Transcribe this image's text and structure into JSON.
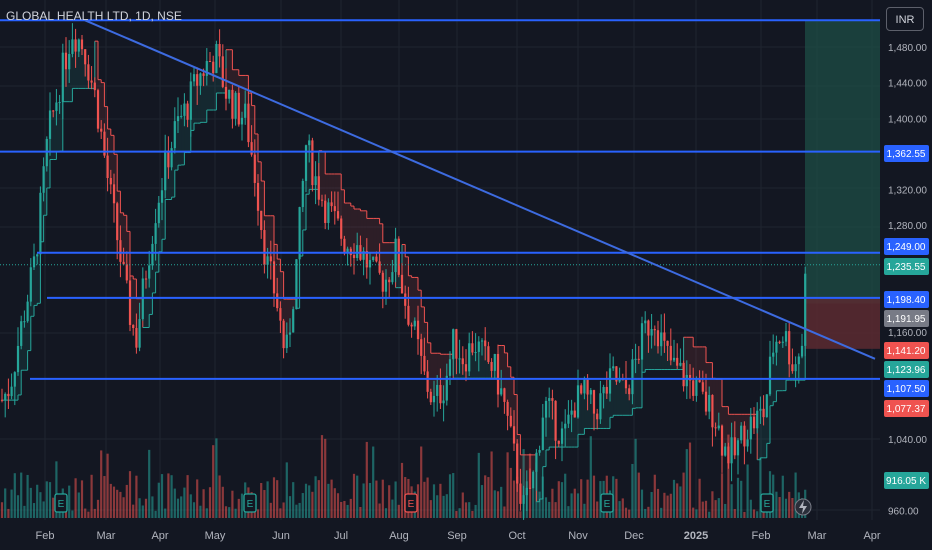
{
  "header": {
    "symbol_title": "GLOBAL HEALTH LTD, 1D, NSE",
    "currency_button": "INR"
  },
  "colors": {
    "background": "#131722",
    "up": "#26a69a",
    "down": "#ef5350",
    "level_line": "#2962ff",
    "trend_line": "#3d6be0",
    "profit_zone": "#1e4d45",
    "loss_zone": "#5c2a30"
  },
  "chart_data": {
    "type": "candlestick",
    "y_ticks": [
      "1,480.00",
      "1,440.00",
      "1,400.00",
      "1,320.00",
      "1,280.00",
      "1,160.00",
      "1,040.00",
      "960.00"
    ],
    "x_ticks": [
      "Feb",
      "Mar",
      "Apr",
      "May",
      "Jun",
      "Jul",
      "Aug",
      "Sep",
      "Oct",
      "Nov",
      "Dec",
      "2025",
      "Feb",
      "Mar",
      "Apr"
    ],
    "price_labels": [
      {
        "text": "1,362.55",
        "color": "#2962ff"
      },
      {
        "text": "1,249.00",
        "color": "#2962ff"
      },
      {
        "text": "1,235.55",
        "color": "#26a69a"
      },
      {
        "text": "1,198.40",
        "color": "#2962ff"
      },
      {
        "text": "1,191.95",
        "color": "#787b86"
      },
      {
        "text": "1,141.20",
        "color": "#ef5350"
      },
      {
        "text": "1,123.96",
        "color": "#26a69a"
      },
      {
        "text": "1,107.50",
        "color": "#2962ff"
      },
      {
        "text": "1,077.37",
        "color": "#ef5350"
      },
      {
        "text": "916.05 K",
        "color": "#26a69a"
      }
    ],
    "horizontal_levels": [
      1510,
      1362.55,
      1249,
      1198.4,
      1107.5
    ],
    "trend_line": {
      "from": {
        "date": "2024-02-23",
        "price": 1510
      },
      "to": {
        "date": "2025-03-29",
        "price": 1130
      }
    },
    "position_tool": {
      "entry": 1191.95,
      "target": 1510,
      "stop": 1141.2
    },
    "event_markers": [
      {
        "label": "E",
        "kind": "earnings"
      },
      {
        "label": "E",
        "kind": "earnings"
      },
      {
        "label": "E",
        "kind": "earnings"
      },
      {
        "label": "E",
        "kind": "earnings"
      },
      {
        "label": "E",
        "kind": "earnings"
      }
    ]
  }
}
